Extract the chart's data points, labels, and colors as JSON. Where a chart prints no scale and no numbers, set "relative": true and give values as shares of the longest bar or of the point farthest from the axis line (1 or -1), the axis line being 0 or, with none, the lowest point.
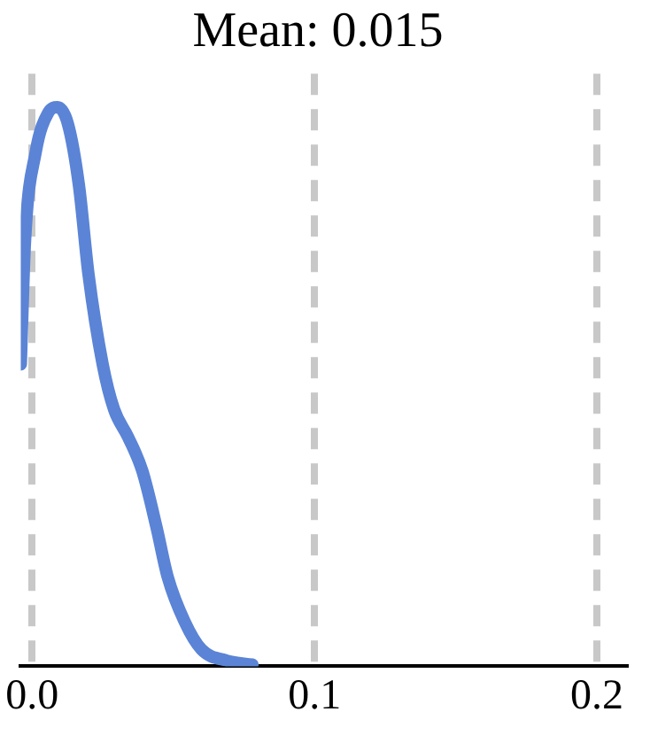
{
  "chart_data": {
    "type": "line",
    "title": "Mean: 0.015",
    "relative": true,
    "color": "#5b84d6",
    "marker": "none",
    "grid": "x",
    "x": [
      -0.004,
      -0.0025,
      0.0013,
      0.0057,
      0.009,
      0.0127,
      0.0166,
      0.02,
      0.025,
      0.029,
      0.034,
      0.039,
      0.044,
      0.048,
      0.054,
      0.06,
      0.069,
      0.078
    ],
    "values": [
      0.54,
      0.76,
      0.92,
      0.99,
      1.0,
      0.97,
      0.86,
      0.7,
      0.54,
      0.46,
      0.41,
      0.35,
      0.25,
      0.16,
      0.08,
      0.03,
      0.01,
      0.003
    ],
    "xlim": [
      -0.004,
      0.21
    ],
    "xticks": [
      {
        "value": 0,
        "label": "0.0"
      },
      0.1,
      0.2
    ]
  }
}
